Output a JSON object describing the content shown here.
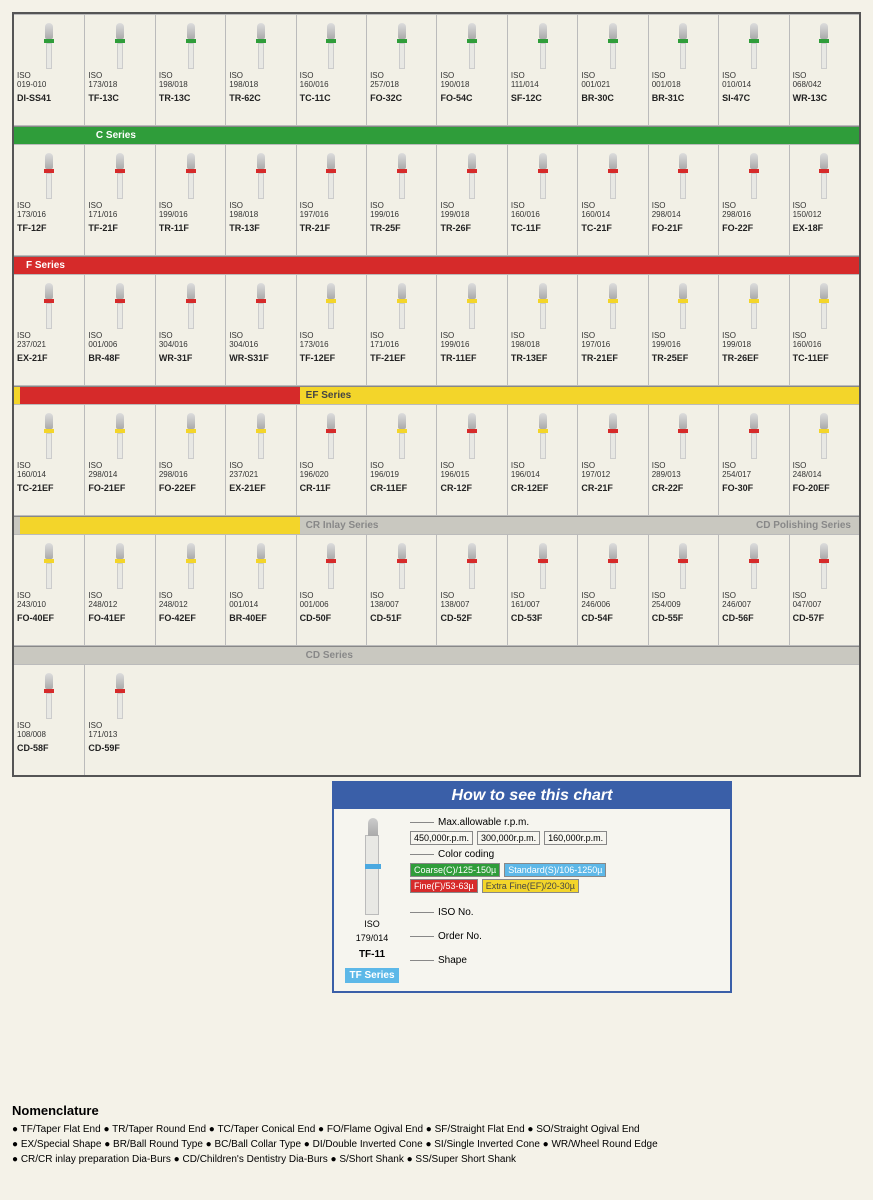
{
  "colors": {
    "coarse": "#2f9d3a",
    "fine": "#d62a2a",
    "extrafine": "#f3d52a",
    "standard": "#5db8e8",
    "banner_gray": "#c9c8c0",
    "banner_blue": "#3a5fa8"
  },
  "rows": [
    {
      "preBanner": null,
      "band": "coarse",
      "items": [
        {
          "iso": "019-010",
          "order": "DI-SS41"
        },
        {
          "iso": "173/018",
          "order": "TF-13C"
        },
        {
          "iso": "198/018",
          "order": "TR-13C"
        },
        {
          "iso": "198/018",
          "order": "TR-62C"
        },
        {
          "iso": "160/016",
          "order": "TC-11C"
        },
        {
          "iso": "257/018",
          "order": "FO-32C"
        },
        {
          "iso": "190/018",
          "order": "FO-54C"
        },
        {
          "iso": "111/014",
          "order": "SF-12C"
        },
        {
          "iso": "001/021",
          "order": "BR-30C"
        },
        {
          "iso": "001/018",
          "order": "BR-31C"
        },
        {
          "iso": "010/014",
          "order": "SI-47C"
        },
        {
          "iso": "068/042",
          "order": "WR-13C"
        }
      ],
      "postBanner": {
        "label": "C Series",
        "color": "coarse",
        "spacer": 1
      }
    },
    {
      "band": "fine",
      "items": [
        {
          "iso": "173/016",
          "order": "TF-12F"
        },
        {
          "iso": "171/016",
          "order": "TF-21F"
        },
        {
          "iso": "199/016",
          "order": "TR-11F"
        },
        {
          "iso": "198/018",
          "order": "TR-13F"
        },
        {
          "iso": "197/016",
          "order": "TR-21F"
        },
        {
          "iso": "199/016",
          "order": "TR-25F"
        },
        {
          "iso": "199/018",
          "order": "TR-26F"
        },
        {
          "iso": "160/016",
          "order": "TC-11F"
        },
        {
          "iso": "160/014",
          "order": "TC-21F"
        },
        {
          "iso": "298/014",
          "order": "FO-21F"
        },
        {
          "iso": "298/016",
          "order": "FO-22F"
        },
        {
          "iso": "150/012",
          "order": "EX-18F"
        }
      ],
      "postBanner": {
        "label": "F Series",
        "color": "fine",
        "spacer": 0
      }
    },
    {
      "band": "fine",
      "items": [
        {
          "iso": "237/021",
          "order": "EX-21F"
        },
        {
          "iso": "001/006",
          "order": "BR-48F"
        },
        {
          "iso": "304/016",
          "order": "WR-31F"
        },
        {
          "iso": "304/016",
          "order": "WR-S31F"
        },
        {
          "iso": "173/016",
          "order": "TF-12EF",
          "alt": "extrafine"
        },
        {
          "iso": "171/016",
          "order": "TF-21EF",
          "alt": "extrafine"
        },
        {
          "iso": "199/016",
          "order": "TR-11EF",
          "alt": "extrafine"
        },
        {
          "iso": "198/018",
          "order": "TR-13EF",
          "alt": "extrafine"
        },
        {
          "iso": "197/016",
          "order": "TR-21EF",
          "alt": "extrafine"
        },
        {
          "iso": "199/016",
          "order": "TR-25EF",
          "alt": "extrafine"
        },
        {
          "iso": "199/018",
          "order": "TR-26EF",
          "alt": "extrafine"
        },
        {
          "iso": "160/016",
          "order": "TC-11EF",
          "alt": "extrafine"
        }
      ],
      "postBanner": {
        "label": "EF Series",
        "color": "extrafine",
        "spacer": 4,
        "spacerColor": "fine",
        "textColor": "#444"
      }
    },
    {
      "band": "extrafine",
      "items": [
        {
          "iso": "160/014",
          "order": "TC-21EF"
        },
        {
          "iso": "298/014",
          "order": "FO-21EF"
        },
        {
          "iso": "298/016",
          "order": "FO-22EF"
        },
        {
          "iso": "237/021",
          "order": "EX-21EF"
        },
        {
          "iso": "196/020",
          "order": "CR-11F",
          "alt": "fine"
        },
        {
          "iso": "196/019",
          "order": "CR-11EF"
        },
        {
          "iso": "196/015",
          "order": "CR-12F",
          "alt": "fine"
        },
        {
          "iso": "196/014",
          "order": "CR-12EF"
        },
        {
          "iso": "197/012",
          "order": "CR-21F",
          "alt": "fine"
        },
        {
          "iso": "289/013",
          "order": "CR-22F",
          "alt": "fine"
        },
        {
          "iso": "254/017",
          "order": "FO-30F",
          "alt": "fine"
        },
        {
          "iso": "248/014",
          "order": "FO-20EF"
        }
      ],
      "postBanner": {
        "label": "CR Inlay Series",
        "label2": "CD Polishing Series",
        "color": "banner_gray",
        "spacer": 4,
        "spacerColor": "extrafine",
        "textColor": "#888"
      }
    },
    {
      "band": "fine",
      "items": [
        {
          "iso": "243/010",
          "order": "FO-40EF",
          "alt": "extrafine"
        },
        {
          "iso": "248/012",
          "order": "FO-41EF",
          "alt": "extrafine"
        },
        {
          "iso": "248/012",
          "order": "FO-42EF",
          "alt": "extrafine"
        },
        {
          "iso": "001/014",
          "order": "BR-40EF",
          "alt": "extrafine"
        },
        {
          "iso": "001/006",
          "order": "CD-50F"
        },
        {
          "iso": "138/007",
          "order": "CD-51F"
        },
        {
          "iso": "138/007",
          "order": "CD-52F"
        },
        {
          "iso": "161/007",
          "order": "CD-53F"
        },
        {
          "iso": "246/006",
          "order": "CD-54F"
        },
        {
          "iso": "254/009",
          "order": "CD-55F"
        },
        {
          "iso": "246/007",
          "order": "CD-56F"
        },
        {
          "iso": "047/007",
          "order": "CD-57F"
        }
      ],
      "postBanner": {
        "label": "CD Series",
        "color": "banner_gray",
        "spacer": 4,
        "spacerColor": "banner_gray",
        "textColor": "#888"
      }
    },
    {
      "band": "fine",
      "partial": 2,
      "items": [
        {
          "iso": "108/008",
          "order": "CD-58F"
        },
        {
          "iso": "171/013",
          "order": "CD-59F"
        }
      ]
    }
  ],
  "howto": {
    "title": "How to see this chart",
    "rpm_label": "Max.allowable r.p.m.",
    "rpm": [
      "450,000r.p.m.",
      "300,000r.p.m.",
      "160,000r.p.m."
    ],
    "color_label": "Color coding",
    "codes": [
      {
        "text": "Coarse(C)/125-150µ",
        "key": "coarse"
      },
      {
        "text": "Standard(S)/106-1250µ",
        "key": "standard"
      },
      {
        "text": "Fine(F)/53-63µ",
        "key": "fine"
      },
      {
        "text": "Extra Fine(EF)/20-30µ",
        "key": "extrafine",
        "textColor": "#444"
      }
    ],
    "iso_label": "ISO",
    "iso_num": "179/014",
    "iso_pointer": "ISO No.",
    "order": "TF-11",
    "order_pointer": "Order No.",
    "shape": "TF Series",
    "shape_pointer": "Shape"
  },
  "nomenclature": {
    "title": "Nomenclature",
    "lines": [
      "● TF/Taper Flat End ● TR/Taper Round End ● TC/Taper Conical End ● FO/Flame Ogival End ● SF/Straight Flat End ● SO/Straight Ogival End",
      "● EX/Special Shape ● BR/Ball Round Type ● BC/Ball Collar Type ● DI/Double Inverted Cone ● SI/Single Inverted Cone ● WR/Wheel Round Edge",
      "● CR/CR inlay preparation Dia-Burs ● CD/Children's Dentistry Dia-Burs ● S/Short Shank ● SS/Super Short Shank"
    ]
  }
}
